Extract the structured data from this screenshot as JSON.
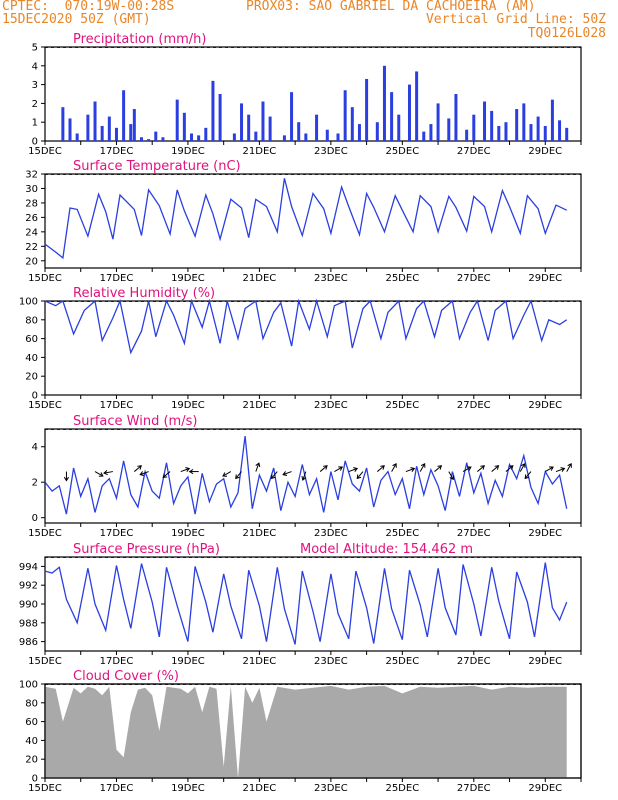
{
  "header": {
    "line1_left": "CPTEC:  070:19W-00:28S",
    "line1_right": "PROX03: SAO GABRIEL DA CACHOEIRA (AM)",
    "line2_left": "15DEC2020 50Z (GMT)",
    "line2_right": "Vertical Grid Line: 50Z",
    "line3_right": "TQ0126L028"
  },
  "colors": {
    "header": "#e8862a",
    "title": "#e0127e",
    "line": "#2b3fe0",
    "cloud": "#a9a9a9"
  },
  "x_labels": [
    "15DEC",
    "17DEC",
    "19DEC",
    "21DEC",
    "23DEC",
    "25DEC",
    "27DEC",
    "29DEC"
  ],
  "chart_data": [
    {
      "type": "bar",
      "title": "Precipitation (mm/h)",
      "ylim": [
        0,
        5
      ],
      "yticks": [
        0,
        1,
        2,
        3,
        4,
        5
      ],
      "x_unit": "days since 15DEC",
      "x": [
        0.5,
        0.7,
        0.9,
        1.2,
        1.4,
        1.6,
        1.8,
        2.0,
        2.2,
        2.4,
        2.5,
        2.7,
        2.9,
        3.1,
        3.3,
        3.7,
        3.9,
        4.1,
        4.3,
        4.5,
        4.7,
        4.9,
        5.3,
        5.5,
        5.7,
        5.9,
        6.1,
        6.3,
        6.7,
        6.9,
        7.1,
        7.3,
        7.6,
        7.9,
        8.2,
        8.4,
        8.6,
        8.8,
        9.0,
        9.3,
        9.5,
        9.7,
        9.9,
        10.2,
        10.4,
        10.6,
        10.8,
        11.0,
        11.3,
        11.5,
        11.8,
        12.0,
        12.3,
        12.5,
        12.7,
        12.9,
        13.2,
        13.4,
        13.6,
        13.8,
        14.0,
        14.2,
        14.4,
        14.6
      ],
      "values": [
        1.8,
        1.2,
        0.4,
        1.4,
        2.1,
        0.8,
        1.3,
        0.7,
        2.7,
        0.9,
        1.7,
        0.2,
        0.1,
        0.5,
        0.2,
        2.2,
        1.5,
        0.4,
        0.3,
        0.7,
        3.2,
        2.5,
        0.4,
        2.0,
        1.4,
        0.5,
        2.1,
        1.3,
        0.3,
        2.6,
        1.0,
        0.4,
        1.4,
        0.6,
        0.4,
        2.7,
        1.8,
        0.9,
        3.3,
        1.0,
        4.0,
        2.6,
        1.4,
        3.0,
        3.7,
        0.5,
        0.9,
        2.0,
        1.2,
        2.5,
        0.6,
        1.4,
        2.1,
        1.6,
        0.8,
        1.0,
        1.7,
        2.0,
        0.9,
        1.3,
        0.8,
        2.2,
        1.1,
        0.7
      ]
    },
    {
      "type": "line",
      "title": "Surface Temperature (nC)",
      "ylim": [
        19,
        32
      ],
      "yticks": [
        20,
        22,
        24,
        26,
        28,
        30,
        32
      ],
      "x_unit": "days since 15DEC",
      "x": [
        0,
        0.3,
        0.5,
        0.7,
        0.9,
        1.2,
        1.5,
        1.7,
        1.9,
        2.1,
        2.5,
        2.7,
        2.9,
        3.2,
        3.5,
        3.7,
        3.9,
        4.2,
        4.5,
        4.7,
        4.9,
        5.2,
        5.5,
        5.7,
        5.9,
        6.2,
        6.5,
        6.7,
        6.9,
        7.2,
        7.5,
        7.8,
        8.0,
        8.3,
        8.5,
        8.8,
        9.0,
        9.2,
        9.5,
        9.8,
        10.0,
        10.3,
        10.5,
        10.8,
        11.0,
        11.3,
        11.5,
        11.8,
        12.0,
        12.3,
        12.5,
        12.8,
        13.0,
        13.3,
        13.5,
        13.8,
        14.0,
        14.3,
        14.6
      ],
      "values": [
        22.3,
        21.2,
        20.4,
        27.3,
        27.1,
        23.4,
        29.2,
        26.8,
        23.0,
        29.1,
        27.1,
        23.5,
        29.8,
        27.6,
        23.7,
        29.8,
        26.9,
        23.4,
        29.1,
        26.5,
        23.0,
        28.5,
        27.3,
        23.2,
        28.5,
        27.5,
        24.0,
        31.4,
        27.5,
        23.5,
        29.3,
        27.2,
        23.8,
        30.2,
        27.5,
        23.6,
        29.3,
        27.4,
        24.0,
        29.0,
        27.0,
        24.0,
        29.0,
        27.5,
        24.0,
        28.9,
        27.4,
        24.1,
        28.9,
        27.5,
        24.0,
        29.7,
        27.5,
        23.8,
        29.0,
        27.2,
        23.8,
        27.7,
        27.0
      ]
    },
    {
      "type": "line",
      "title": "Relative Humidity (%)",
      "ylim": [
        0,
        100
      ],
      "yticks": [
        0,
        20,
        40,
        60,
        80,
        100
      ],
      "x_unit": "days since 15DEC",
      "x": [
        0,
        0.3,
        0.5,
        0.8,
        1.1,
        1.4,
        1.6,
        1.9,
        2.1,
        2.4,
        2.7,
        2.9,
        3.1,
        3.4,
        3.6,
        3.9,
        4.1,
        4.4,
        4.6,
        4.9,
        5.1,
        5.4,
        5.6,
        5.9,
        6.1,
        6.4,
        6.6,
        6.9,
        7.1,
        7.4,
        7.6,
        7.9,
        8.1,
        8.4,
        8.6,
        8.9,
        9.1,
        9.4,
        9.6,
        9.9,
        10.1,
        10.4,
        10.6,
        10.9,
        11.1,
        11.4,
        11.6,
        11.9,
        12.1,
        12.4,
        12.6,
        12.9,
        13.1,
        13.4,
        13.6,
        13.9,
        14.1,
        14.4,
        14.6
      ],
      "values": [
        100,
        95,
        100,
        65,
        90,
        100,
        58,
        82,
        100,
        45,
        68,
        100,
        62,
        100,
        85,
        55,
        100,
        72,
        100,
        55,
        100,
        60,
        92,
        100,
        60,
        88,
        98,
        52,
        100,
        70,
        100,
        62,
        95,
        100,
        50,
        92,
        100,
        60,
        88,
        100,
        60,
        92,
        100,
        62,
        90,
        100,
        60,
        88,
        100,
        58,
        90,
        100,
        60,
        85,
        100,
        58,
        80,
        75,
        80
      ]
    },
    {
      "type": "line",
      "title": "Surface Wind (m/s)",
      "ylim": [
        -0.3,
        5.0
      ],
      "yticks": [
        0,
        2,
        4
      ],
      "x_unit": "days since 15DEC",
      "x": [
        0,
        0.2,
        0.4,
        0.6,
        0.8,
        1.0,
        1.2,
        1.4,
        1.6,
        1.8,
        2.0,
        2.2,
        2.4,
        2.6,
        2.8,
        3.0,
        3.2,
        3.4,
        3.6,
        3.8,
        4.0,
        4.2,
        4.4,
        4.6,
        4.8,
        5.0,
        5.2,
        5.4,
        5.6,
        5.8,
        6.0,
        6.2,
        6.4,
        6.6,
        6.8,
        7.0,
        7.2,
        7.4,
        7.6,
        7.8,
        8.0,
        8.2,
        8.4,
        8.6,
        8.8,
        9.0,
        9.2,
        9.4,
        9.6,
        9.8,
        10.0,
        10.2,
        10.4,
        10.6,
        10.8,
        11.0,
        11.2,
        11.4,
        11.6,
        11.8,
        12.0,
        12.2,
        12.4,
        12.6,
        12.8,
        13.0,
        13.2,
        13.4,
        13.6,
        13.8,
        14.0,
        14.2,
        14.4,
        14.6
      ],
      "values": [
        2.0,
        1.5,
        1.8,
        0.2,
        2.8,
        1.2,
        2.2,
        0.3,
        1.8,
        2.2,
        1.1,
        3.2,
        1.3,
        0.6,
        2.6,
        1.5,
        1.1,
        3.1,
        0.8,
        1.8,
        2.3,
        0.2,
        2.5,
        0.9,
        1.9,
        2.2,
        0.6,
        1.4,
        4.6,
        0.5,
        2.4,
        1.5,
        2.8,
        0.4,
        2.0,
        1.2,
        3.0,
        1.3,
        2.2,
        0.3,
        2.6,
        1.0,
        3.2,
        1.9,
        1.5,
        2.8,
        0.6,
        2.1,
        2.6,
        1.3,
        2.2,
        0.5,
        2.9,
        1.3,
        2.7,
        1.8,
        0.4,
        2.6,
        1.2,
        3.1,
        1.4,
        2.5,
        0.8,
        2.1,
        1.2,
        3.0,
        2.2,
        3.5,
        1.7,
        0.8,
        2.6,
        1.9,
        2.4,
        0.5
      ],
      "arrows_x": [
        0.6,
        1.4,
        1.9,
        2.5,
        2.9,
        3.5,
        3.8,
        4.3,
        5.2,
        5.5,
        5.9,
        6.5,
        6.9,
        7.3,
        7.7,
        8.1,
        8.5,
        8.9,
        9.3,
        9.7,
        10.1,
        10.5,
        10.9,
        11.3,
        11.7,
        12.1,
        12.5,
        12.9,
        13.3,
        13.6,
        14.0,
        14.3,
        14.6
      ],
      "arrows_angle_deg": [
        -90,
        -30,
        190,
        40,
        200,
        220,
        20,
        180,
        210,
        230,
        70,
        230,
        200,
        250,
        40,
        30,
        20,
        230,
        40,
        60,
        20,
        60,
        40,
        300,
        30,
        40,
        40,
        40,
        60,
        230,
        30,
        20,
        60
      ]
    },
    {
      "type": "line",
      "title": "Surface Pressure (hPa)",
      "annotation": "Model Altitude: 154.462 m",
      "ylim": [
        985,
        995
      ],
      "yticks": [
        986,
        988,
        990,
        992,
        994
      ],
      "x_unit": "days since 15DEC",
      "x": [
        0,
        0.2,
        0.4,
        0.6,
        0.9,
        1.2,
        1.4,
        1.7,
        2.0,
        2.2,
        2.4,
        2.7,
        3.0,
        3.2,
        3.4,
        3.7,
        4.0,
        4.2,
        4.5,
        4.7,
        5.0,
        5.2,
        5.5,
        5.7,
        6.0,
        6.2,
        6.5,
        6.7,
        7.0,
        7.2,
        7.5,
        7.7,
        8.0,
        8.2,
        8.5,
        8.7,
        9.0,
        9.2,
        9.5,
        9.7,
        10.0,
        10.2,
        10.5,
        10.7,
        11.0,
        11.2,
        11.5,
        11.7,
        12.0,
        12.2,
        12.5,
        12.7,
        13.0,
        13.2,
        13.5,
        13.7,
        14.0,
        14.2,
        14.4,
        14.6
      ],
      "values": [
        993.5,
        993.3,
        993.9,
        990.5,
        988.0,
        993.8,
        990.0,
        987.2,
        994.1,
        990.5,
        987.4,
        994.3,
        990.2,
        986.5,
        993.9,
        989.8,
        986.0,
        994.0,
        990.2,
        987.0,
        993.2,
        989.8,
        986.3,
        993.6,
        989.8,
        986.0,
        993.9,
        989.5,
        985.7,
        993.5,
        989.2,
        986.0,
        993.2,
        989.0,
        986.3,
        993.5,
        989.6,
        985.8,
        993.8,
        989.5,
        986.2,
        993.6,
        989.9,
        986.5,
        993.8,
        989.6,
        986.7,
        994.2,
        990.0,
        986.6,
        993.9,
        990.3,
        986.3,
        993.4,
        990.2,
        986.5,
        994.4,
        989.6,
        988.3,
        990.2
      ]
    },
    {
      "type": "area",
      "title": "Cloud Cover (%)",
      "ylim": [
        0,
        100
      ],
      "yticks": [
        0,
        20,
        40,
        60,
        80,
        100
      ],
      "x_unit": "days since 15DEC",
      "x": [
        0,
        0.3,
        0.5,
        0.8,
        1.0,
        1.2,
        1.4,
        1.6,
        1.8,
        2.0,
        2.2,
        2.4,
        2.6,
        2.8,
        3.0,
        3.2,
        3.4,
        3.6,
        3.8,
        4.0,
        4.2,
        4.4,
        4.6,
        4.8,
        5.0,
        5.2,
        5.4,
        5.6,
        5.8,
        6.0,
        6.2,
        6.5,
        7.0,
        7.5,
        8.0,
        8.5,
        9.0,
        9.5,
        10.0,
        10.5,
        11.0,
        11.5,
        12.0,
        12.5,
        13.0,
        13.5,
        14.0,
        14.6
      ],
      "values": [
        97,
        95,
        60,
        96,
        90,
        97,
        95,
        88,
        97,
        30,
        22,
        70,
        94,
        96,
        88,
        50,
        97,
        96,
        95,
        90,
        97,
        70,
        97,
        95,
        12,
        98,
        0,
        97,
        80,
        96,
        60,
        97,
        94,
        96,
        98,
        94,
        97,
        98,
        90,
        97,
        96,
        97,
        98,
        94,
        97,
        96,
        97,
        97
      ]
    }
  ]
}
